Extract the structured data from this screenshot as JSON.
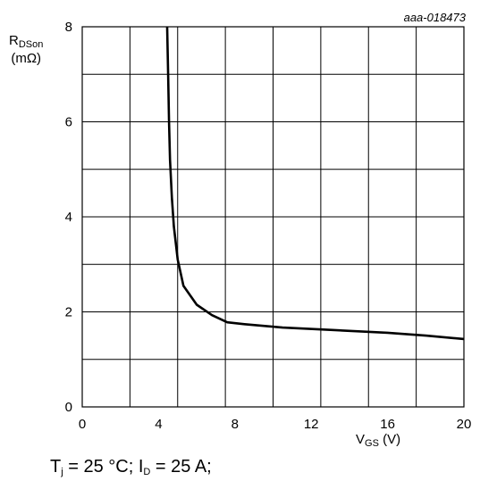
{
  "chart_data": {
    "type": "line",
    "annotation": "aaa-018473",
    "ylabel": {
      "main": "R",
      "sub": "DSon",
      "unit": "(mΩ)"
    },
    "xlabel": {
      "main": "V",
      "sub": "GS",
      "unit": " (V)"
    },
    "xlim": [
      0,
      20
    ],
    "ylim": [
      0,
      8
    ],
    "xticks": [
      0,
      4,
      8,
      12,
      16,
      20
    ],
    "yticks": [
      0,
      2,
      4,
      6,
      8
    ],
    "grid": true,
    "grid_x_step": 2.5,
    "grid_y_step": 1,
    "series": [
      {
        "x": [
          4.45,
          4.5,
          4.55,
          4.6,
          4.7,
          4.8,
          5.0,
          5.3,
          6.0,
          6.8,
          7.6,
          8.5,
          10.5,
          13.0,
          16.0,
          18.0,
          20.0
        ],
        "y": [
          8.0,
          7.0,
          6.0,
          5.2,
          4.4,
          3.8,
          3.1,
          2.55,
          2.15,
          1.93,
          1.78,
          1.74,
          1.67,
          1.62,
          1.56,
          1.5,
          1.43
        ]
      }
    ]
  },
  "conditions": {
    "t_main": "T",
    "t_sub": "j",
    "t_value": " = 25 °C; ",
    "i_main": "I",
    "i_sub": "D",
    "i_value": " = 25 A;"
  }
}
